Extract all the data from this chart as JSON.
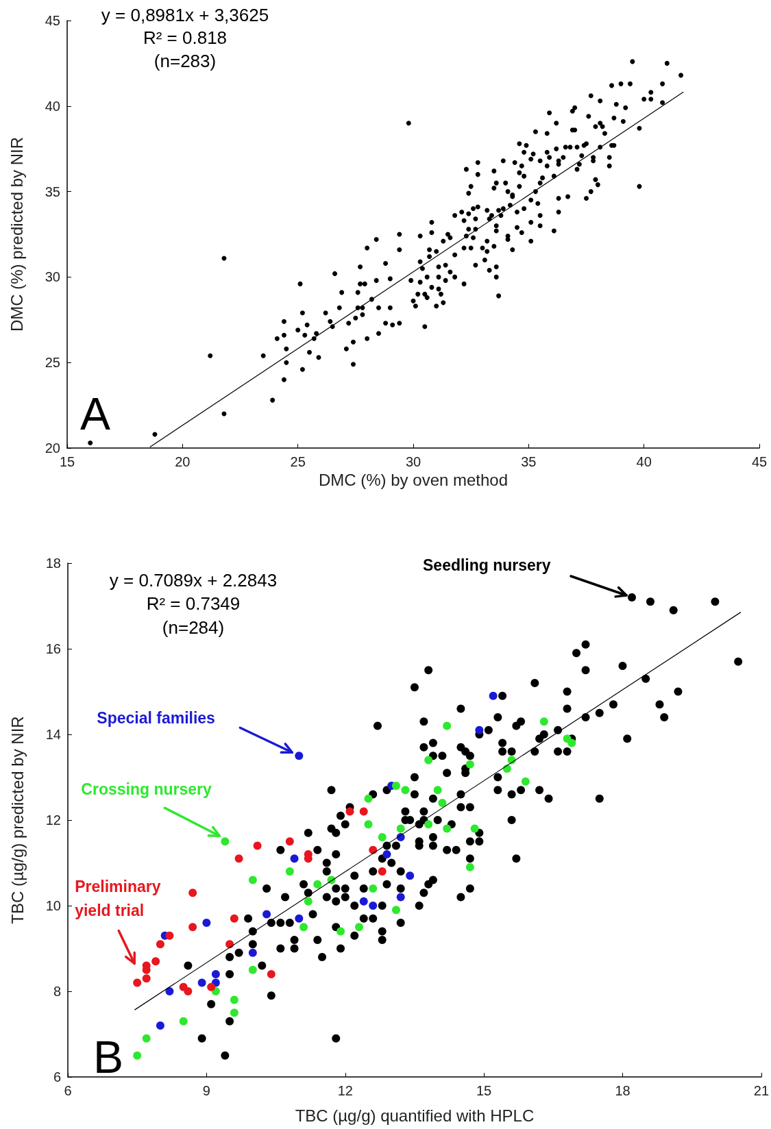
{
  "chart_data": [
    {
      "type": "scatter",
      "xlabel": "DMC (%) by oven method",
      "ylabel": "DMC (%) predicted by NIR",
      "xlim": [
        15,
        45
      ],
      "xticks": [
        15,
        20,
        25,
        30,
        35,
        40,
        45
      ],
      "ylim": [
        20,
        45
      ],
      "yticks": [
        20,
        25,
        30,
        35,
        40,
        45
      ],
      "marker": "circle",
      "grid": false,
      "legend": false,
      "annotations": [
        "y = 0,8981x + 3,3625",
        "R² = 0.818",
        "(n=283)",
        "A"
      ],
      "series": [
        {
          "color": "#000000",
          "x": [
            16.0,
            18.8,
            21.8,
            21.2,
            21.8,
            23.9,
            23.5,
            24.4,
            24.5,
            24.5,
            24.4,
            24.4,
            24.1,
            25.2,
            25.0,
            25.1,
            25.2,
            25.3,
            25.4,
            25.5,
            25.7,
            25.8,
            25.9,
            26.2,
            26.4,
            26.5,
            26.6,
            26.8,
            26.9,
            27.1,
            27.2,
            27.4,
            27.4,
            27.5,
            27.6,
            27.6,
            27.7,
            27.7,
            27.8,
            27.8,
            27.9,
            28.0,
            28.0,
            28.2,
            28.4,
            28.4,
            28.5,
            28.5,
            28.8,
            28.8,
            29.0,
            29.0,
            29.1,
            29.4,
            29.4,
            29.4
          ],
          "values": [
            20.3,
            20.8,
            22.0,
            25.4,
            31.1,
            22.8,
            25.4,
            24.0,
            25.0,
            25.8,
            27.4,
            26.6,
            26.4,
            24.6,
            26.9,
            29.6,
            27.9,
            26.6,
            27.2,
            25.6,
            26.4,
            26.7,
            25.3,
            27.9,
            27.4,
            27.1,
            30.2,
            28.2,
            29.1,
            25.8,
            27.3,
            26.2,
            24.9,
            27.6,
            29.1,
            28.2,
            29.6,
            30.6,
            27.8,
            28.2,
            29.6,
            31.7,
            26.4,
            28.7,
            32.2,
            29.8,
            28.2,
            26.7,
            30.8,
            27.3,
            28.2,
            29.9,
            27.2,
            32.5,
            31.6,
            27.3
          ]
        },
        {
          "color": "#000000",
          "x": [
            29.8,
            30.5,
            30.0,
            30.1,
            30.2,
            30.5,
            30.6,
            31.0,
            31.3,
            31.2,
            30.8,
            31.1,
            29.9,
            30.3,
            30.6,
            31.1,
            31.4,
            31.8,
            32.2,
            31.6,
            31.4,
            31.1,
            30.4,
            30.3,
            30.7,
            31.0,
            30.7,
            30.3,
            30.8,
            30.8,
            31.3,
            31.5,
            31.6,
            31.8,
            31.8,
            32.1,
            32.2,
            32.3,
            32.4,
            32.5,
            32.4,
            32.4,
            32.3,
            32.2,
            32.5,
            32.6,
            32.7,
            32.7,
            32.8,
            32.8,
            32.7,
            32.6,
            32.8,
            33.0,
            33.1,
            33.2,
            33.2,
            33.3,
            33.3,
            33.2,
            33.4,
            33.5,
            33.5,
            33.5,
            33.6,
            33.6,
            33.6,
            33.6,
            33.7,
            33.6,
            33.7,
            33.8,
            33.9,
            33.9,
            34.0,
            34.1,
            34.1,
            34.1,
            34.2,
            34.3,
            34.3,
            34.3,
            34.4,
            34.5,
            34.6,
            34.6,
            34.6,
            34.5,
            34.7,
            34.7,
            34.8,
            34.8,
            34.8,
            34.9,
            35.1,
            35.1,
            35.1,
            35.1,
            35.2,
            35.3,
            35.3,
            35.4,
            35.5,
            35.5,
            35.5,
            35.5,
            35.6,
            35.8,
            35.8,
            35.8,
            35.9,
            35.9,
            36.1,
            36.1,
            36.2,
            36.2,
            36.3,
            36.3,
            36.3,
            36.3,
            36.5,
            36.6,
            36.7,
            36.8,
            36.9,
            36.9,
            37.0,
            37.0,
            37.1,
            37.1,
            37.2,
            37.3,
            37.4,
            37.5,
            37.5,
            37.6,
            37.7,
            37.7,
            37.8,
            37.8,
            37.9,
            38.0,
            37.9,
            38.1,
            38.1,
            38.1,
            38.2,
            38.3,
            38.5,
            38.5,
            38.6,
            38.7,
            38.6,
            38.7,
            38.8,
            39.0,
            39.1,
            39.2,
            39.4,
            39.5,
            39.8,
            39.8,
            40.0,
            40.3,
            40.3,
            40.8,
            40.8,
            41.0,
            41.6
          ],
          "values": [
            39.0,
            27.1,
            28.6,
            28.3,
            29.0,
            29.0,
            28.8,
            28.3,
            28.5,
            29.0,
            29.4,
            29.3,
            29.8,
            29.7,
            30.0,
            30.0,
            29.8,
            30.0,
            29.6,
            30.3,
            30.7,
            30.6,
            30.5,
            30.9,
            31.2,
            31.5,
            31.6,
            32.4,
            32.6,
            33.2,
            32.1,
            32.5,
            32.3,
            31.3,
            33.6,
            33.8,
            33.3,
            36.3,
            33.7,
            35.3,
            34.9,
            32.8,
            32.4,
            31.7,
            31.7,
            32.3,
            32.8,
            30.7,
            36.0,
            36.7,
            33.4,
            34.0,
            34.1,
            31.7,
            31.0,
            32.1,
            31.5,
            30.4,
            33.4,
            33.9,
            33.6,
            31.8,
            36.2,
            35.2,
            35.5,
            32.7,
            30.6,
            30.0,
            28.9,
            33.0,
            33.9,
            33.6,
            34.0,
            36.8,
            35.5,
            32.2,
            35.0,
            32.4,
            34.2,
            34.7,
            34.8,
            31.6,
            36.7,
            33.8,
            37.8,
            36.1,
            35.3,
            32.9,
            32.6,
            36.5,
            34.0,
            37.3,
            35.9,
            37.7,
            34.5,
            36.9,
            33.2,
            32.1,
            37.2,
            35.0,
            38.5,
            34.3,
            36.8,
            33.0,
            33.6,
            35.5,
            35.8,
            38.4,
            36.5,
            37.3,
            37.0,
            39.6,
            32.7,
            35.9,
            39.0,
            37.5,
            34.6,
            33.8,
            36.6,
            36.8,
            37.0,
            37.6,
            34.7,
            37.6,
            38.6,
            39.7,
            39.9,
            38.6,
            37.6,
            36.3,
            36.6,
            37.1,
            37.7,
            37.8,
            34.6,
            39.4,
            40.6,
            35.0,
            37.0,
            36.8,
            35.7,
            35.4,
            38.8,
            37.6,
            40.3,
            39.0,
            38.8,
            38.4,
            37.0,
            36.5,
            37.7,
            37.7,
            41.2,
            39.3,
            40.1,
            41.3,
            39.1,
            39.9,
            41.3,
            42.6,
            38.7,
            35.3,
            40.4,
            40.4,
            40.8,
            40.2,
            41.3,
            42.5,
            41.8
          ]
        },
        {
          "type": "line",
          "color": "#000000",
          "marker": "none",
          "line_style": "solid",
          "x": [
            18.6,
            41.7
          ],
          "values": [
            20.07,
            40.81
          ]
        }
      ]
    },
    {
      "type": "scatter",
      "xlabel": "TBC (µg/g) quantified with HPLC",
      "ylabel": "TBC (µg/g) predicted by NIR",
      "xlim": [
        6,
        21
      ],
      "xticks": [
        6,
        9,
        12,
        15,
        18,
        21
      ],
      "ylim": [
        6,
        18
      ],
      "yticks": [
        6,
        8,
        10,
        12,
        14,
        16,
        18
      ],
      "marker": "circle",
      "grid": false,
      "legend": false,
      "annotations": [
        "y = 0.7089x + 2.2843",
        "R² = 0.7349",
        "(n=284)",
        "B"
      ],
      "series": [
        {
          "name": "Seedling nursery",
          "color": "#000000",
          "x": [
            18.2,
            18.6,
            19.1,
            20.0,
            20.5,
            17.2,
            17.0,
            17.2,
            18.0,
            18.5,
            16.1,
            13.8,
            13.5,
            15.4,
            16.8,
            16.8,
            14.5,
            19.2,
            18.8,
            18.9,
            17.8,
            17.5,
            17.2,
            18.1,
            13.7,
            15.3,
            15.1,
            15.8,
            15.7,
            14.9,
            16.2,
            16.3,
            16.6,
            16.9,
            16.8,
            16.6,
            16.1,
            15.4,
            15.4,
            15.6,
            13.7,
            13.9,
            13.9,
            14.1,
            14.5,
            14.6,
            14.7,
            14.6,
            14.2,
            14.6,
            15.3,
            15.3,
            15.6,
            15.8,
            16.2,
            16.4,
            17.5,
            15.6,
            15.7,
            14.5,
            14.5,
            14.7,
            14.0,
            14.3,
            13.9,
            13.7,
            13.7,
            13.6,
            13.9,
            13.9,
            13.6,
            14.2,
            14.4,
            14.7,
            14.9,
            14.9,
            14.7,
            13.9,
            13.8,
            13.7,
            13.6,
            14.5,
            14.7,
            9.4,
            8.9,
            9.1,
            9.5,
            9.5,
            8.6,
            9.5,
            9.7,
            10.0,
            10.2,
            10.4,
            9.9,
            10.0,
            10.3,
            10.4,
            10.6,
            10.6,
            10.8,
            10.7,
            10.6,
            10.9,
            10.9,
            11.1,
            11.2,
            11.2,
            11.3,
            11.4,
            11.5,
            11.4,
            11.6,
            11.6,
            11.6,
            11.7,
            11.7,
            11.8,
            11.8,
            11.8,
            11.8,
            11.9,
            11.8,
            11.8,
            11.9,
            12.0,
            12.0,
            12.0,
            12.1,
            12.2,
            12.2,
            12.2,
            12.4,
            12.4,
            12.5,
            12.6,
            12.6,
            12.6,
            12.8,
            12.8,
            12.9,
            12.9,
            12.8,
            12.8,
            12.9,
            13.1,
            13.0,
            13.2,
            13.2,
            13.2,
            13.3,
            13.3,
            13.4,
            13.5,
            12.7,
            13.5,
            13.6
          ],
          "values": [
            17.2,
            17.1,
            16.9,
            17.1,
            15.7,
            16.1,
            15.9,
            15.5,
            15.6,
            15.3,
            15.2,
            15.5,
            15.1,
            14.9,
            15.0,
            14.6,
            14.6,
            15.0,
            14.7,
            14.4,
            14.7,
            14.5,
            14.4,
            13.9,
            14.3,
            14.4,
            14.1,
            14.3,
            14.2,
            14.0,
            13.9,
            14.0,
            14.1,
            13.9,
            13.6,
            13.6,
            13.6,
            13.8,
            13.6,
            13.6,
            13.7,
            13.8,
            13.5,
            13.5,
            13.7,
            13.6,
            13.5,
            13.2,
            13.1,
            13.1,
            13.0,
            12.7,
            12.6,
            12.7,
            12.7,
            12.5,
            12.5,
            12.0,
            11.1,
            12.6,
            12.3,
            12.3,
            12.0,
            11.9,
            12.5,
            12.2,
            12.0,
            11.9,
            11.6,
            11.4,
            11.4,
            11.3,
            11.3,
            11.5,
            11.5,
            11.7,
            11.1,
            10.6,
            10.5,
            10.3,
            10.0,
            10.2,
            10.4,
            6.5,
            6.9,
            7.7,
            7.3,
            8.4,
            8.6,
            8.8,
            8.9,
            9.1,
            8.6,
            7.9,
            9.7,
            9.4,
            10.4,
            9.6,
            9.6,
            9.0,
            9.6,
            10.2,
            11.3,
            9.0,
            9.2,
            10.5,
            11.7,
            10.3,
            9.8,
            9.2,
            8.8,
            11.3,
            11.0,
            10.8,
            10.2,
            12.7,
            11.8,
            11.2,
            10.1,
            10.4,
            9.5,
            9.0,
            6.9,
            11.7,
            12.1,
            10.4,
            10.2,
            11.9,
            12.3,
            10.7,
            10.0,
            9.3,
            10.4,
            9.7,
            null,
            10.8,
            9.7,
            12.6,
            9.4,
            9.2,
            10.5,
            12.7,
            11.1,
            10.0,
            11.4,
            11.4,
            11.0,
            10.8,
            9.6,
            10.4,
            12.2,
            12.0,
            12.0,
            13.0,
            14.2,
            12.6,
            11.5
          ]
        },
        {
          "name": "Special families",
          "color": "#1a1ad6",
          "x": [
            11.0,
            8.1,
            8.2,
            8.0,
            8.9,
            9.0,
            9.2,
            9.2,
            10.0,
            10.3,
            11.0,
            10.9,
            12.4,
            12.6,
            12.9,
            13.0,
            13.2,
            13.2,
            13.4,
            15.2,
            14.9
          ],
          "values": [
            13.5,
            9.3,
            8.0,
            7.2,
            8.2,
            9.6,
            8.4,
            8.2,
            8.9,
            9.8,
            9.7,
            11.1,
            10.1,
            10.0,
            11.2,
            12.8,
            11.6,
            10.2,
            10.7,
            14.9,
            14.1
          ]
        },
        {
          "name": "Crossing nursery",
          "color": "#2ee82e",
          "x": [
            9.4,
            7.5,
            7.7,
            8.5,
            9.2,
            9.6,
            9.6,
            10.0,
            10.0,
            10.8,
            11.1,
            11.2,
            11.4,
            11.7,
            11.9,
            12.3,
            12.5,
            12.5,
            12.6,
            12.8,
            13.1,
            13.1,
            13.2,
            13.3,
            14.2,
            13.8,
            14.7,
            14.0,
            14.1,
            13.8,
            14.2,
            14.8,
            14.7,
            15.6,
            15.5,
            15.9,
            16.3,
            16.8,
            16.9
          ],
          "values": [
            11.5,
            6.5,
            6.9,
            7.3,
            8.0,
            7.8,
            7.5,
            10.6,
            8.5,
            10.8,
            9.5,
            10.1,
            10.5,
            10.6,
            9.4,
            9.5,
            11.9,
            12.5,
            10.4,
            11.6,
            9.9,
            12.8,
            11.8,
            12.7,
            14.2,
            13.4,
            13.3,
            12.7,
            12.4,
            11.9,
            11.8,
            11.8,
            10.9,
            13.4,
            13.2,
            12.9,
            14.3,
            13.9,
            13.8
          ]
        },
        {
          "name": "Preliminary yield trial",
          "color": "#e8161e",
          "x": [
            7.5,
            7.7,
            7.7,
            7.7,
            7.9,
            8.0,
            8.2,
            8.7,
            8.7,
            8.5,
            8.6,
            9.1,
            9.5,
            9.6,
            9.7,
            10.1,
            10.4,
            10.8,
            11.2,
            11.2,
            12.1,
            12.4,
            12.6,
            12.8
          ],
          "values": [
            8.2,
            8.3,
            8.6,
            8.5,
            8.7,
            9.1,
            9.3,
            9.5,
            10.3,
            8.1,
            8.0,
            8.1,
            9.1,
            9.7,
            11.1,
            11.4,
            8.4,
            11.5,
            11.2,
            11.1,
            12.2,
            12.2,
            11.3,
            10.8
          ]
        },
        {
          "type": "line",
          "color": "#000000",
          "marker": "none",
          "line_style": "solid",
          "x": [
            7.45,
            20.55
          ],
          "values": [
            7.57,
            16.85
          ]
        }
      ]
    }
  ]
}
